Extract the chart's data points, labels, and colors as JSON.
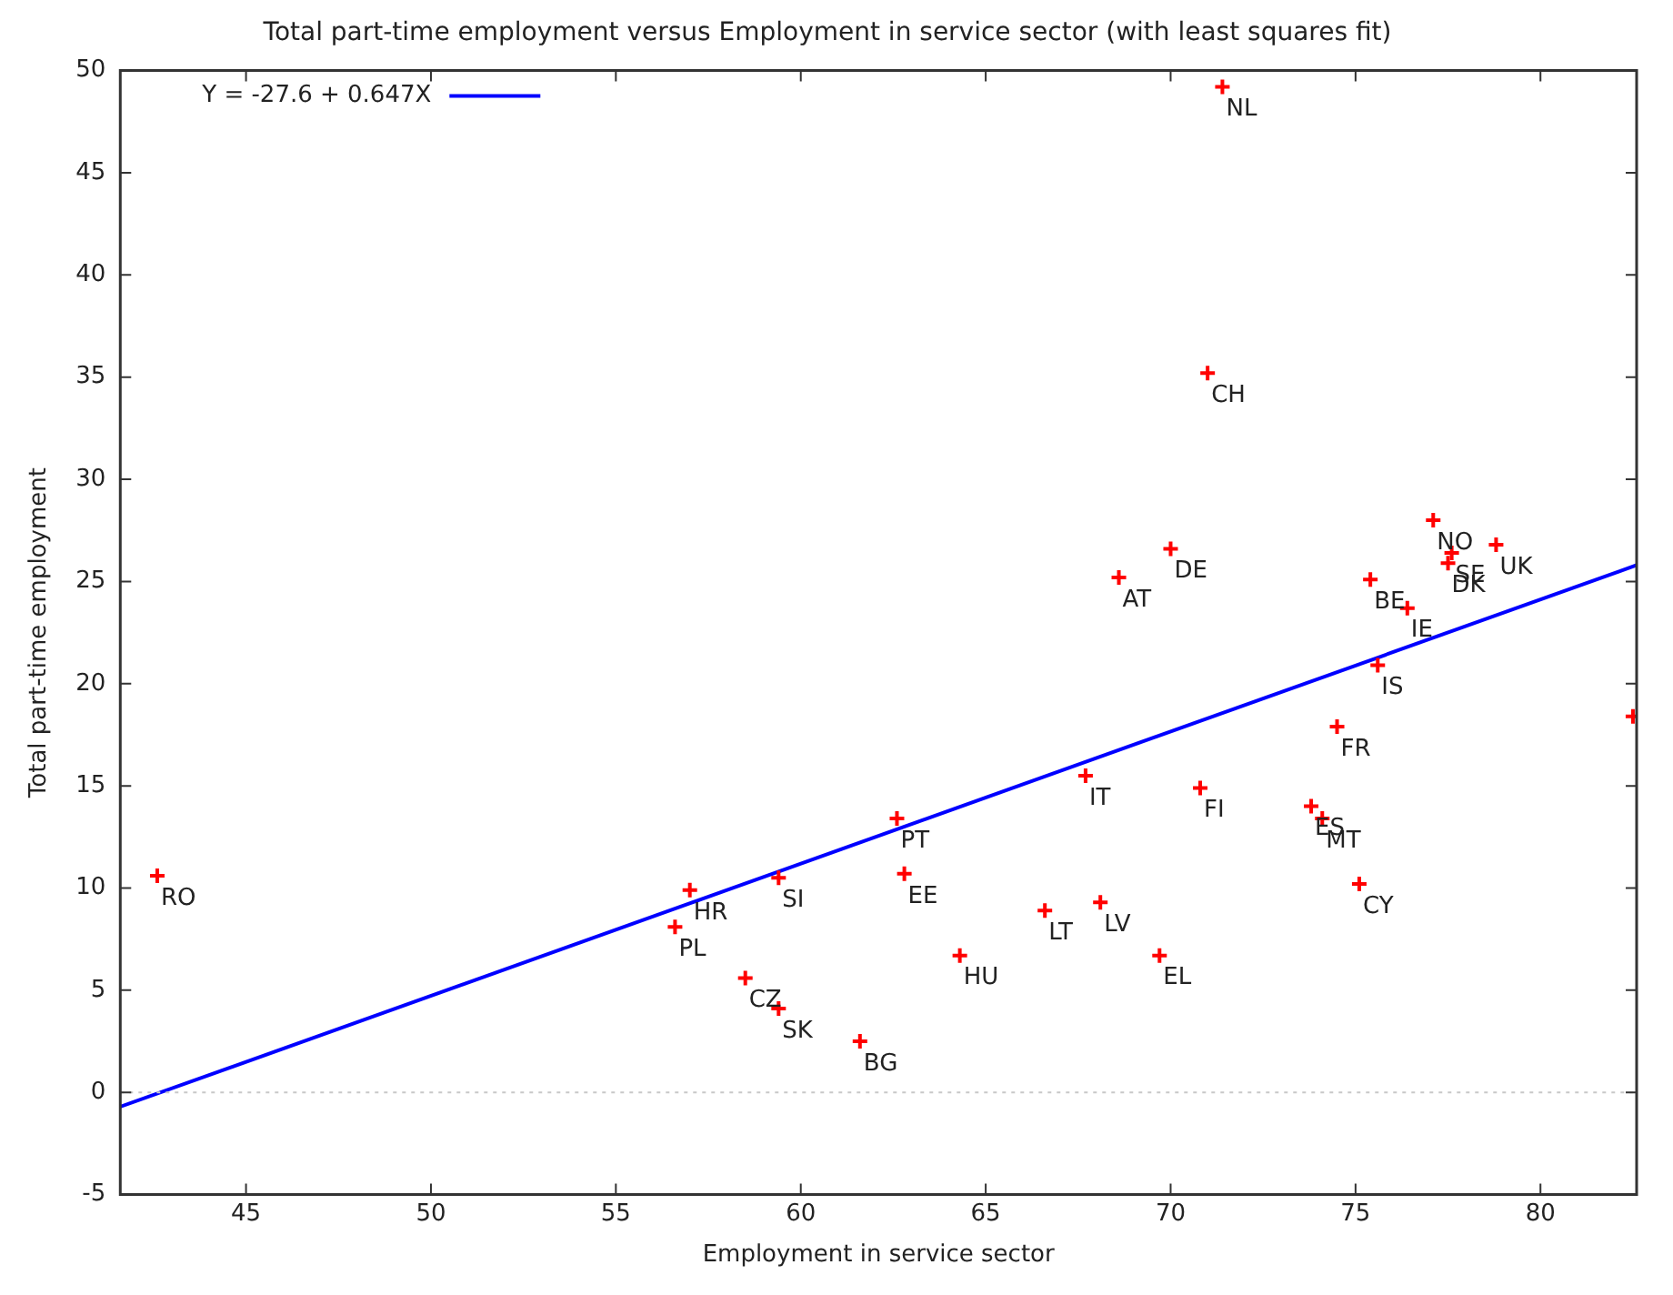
{
  "chart_data": {
    "type": "scatter",
    "title": "Total part-time employment versus Employment in service sector (with least squares fit)",
    "xlabel": "Employment in service sector",
    "ylabel": "Total part-time employment",
    "xlim": [
      41.6,
      82.6
    ],
    "xticks": [
      45,
      50,
      55,
      60,
      65,
      70,
      75,
      80
    ],
    "ylim": [
      -5,
      50
    ],
    "yticks": [
      -5,
      0,
      5,
      10,
      15,
      20,
      25,
      30,
      35,
      40,
      45,
      50
    ],
    "grid": false,
    "legend": "top left",
    "marker": "cross",
    "ref_lines": [
      {
        "axis": "y",
        "value": 0,
        "color": "#c8c8c8",
        "line_style": "dotted"
      }
    ],
    "series": [
      {
        "type": "scatter",
        "color": "#ff0000",
        "x": [
          42.6,
          57.0,
          56.6,
          59.4,
          58.5,
          59.4,
          62.6,
          62.8,
          61.6,
          64.3,
          66.6,
          68.1,
          69.7,
          67.7,
          70.8,
          73.8,
          74.1,
          75.1,
          74.5,
          75.6,
          75.4,
          76.4,
          77.1,
          77.5,
          77.6,
          78.8,
          68.6,
          70.0,
          71.0,
          71.4,
          82.5
        ],
        "values": [
          10.6,
          9.9,
          8.1,
          10.5,
          5.6,
          4.1,
          13.4,
          10.7,
          2.5,
          6.7,
          8.9,
          9.3,
          6.7,
          15.5,
          14.9,
          14.0,
          13.4,
          10.2,
          17.9,
          20.9,
          25.1,
          23.7,
          28.0,
          25.9,
          26.4,
          26.8,
          25.2,
          26.6,
          35.2,
          49.2,
          18.4
        ]
      },
      {
        "type": "line",
        "name": "Y = -27.6 + 0.647X",
        "color": "#0000ff",
        "line_style": "solid",
        "marker": "none",
        "x": [
          41.6,
          82.6
        ],
        "values": [
          -0.7,
          25.8
        ]
      }
    ],
    "annotations": [
      {
        "text": "RO",
        "x": 42.6,
        "y": 10.6
      },
      {
        "text": "HR",
        "x": 57.0,
        "y": 9.9
      },
      {
        "text": "PL",
        "x": 56.6,
        "y": 8.1
      },
      {
        "text": "SI",
        "x": 59.4,
        "y": 10.5
      },
      {
        "text": "CZ",
        "x": 58.5,
        "y": 5.6
      },
      {
        "text": "SK",
        "x": 59.4,
        "y": 4.1
      },
      {
        "text": "PT",
        "x": 62.6,
        "y": 13.4
      },
      {
        "text": "EE",
        "x": 62.8,
        "y": 10.7
      },
      {
        "text": "BG",
        "x": 61.6,
        "y": 2.5
      },
      {
        "text": "HU",
        "x": 64.3,
        "y": 6.7
      },
      {
        "text": "LT",
        "x": 66.6,
        "y": 8.9
      },
      {
        "text": "LV",
        "x": 68.1,
        "y": 9.3
      },
      {
        "text": "EL",
        "x": 69.7,
        "y": 6.7
      },
      {
        "text": "IT",
        "x": 67.7,
        "y": 15.5
      },
      {
        "text": "FI",
        "x": 70.8,
        "y": 14.9
      },
      {
        "text": "ES",
        "x": 73.8,
        "y": 14.0
      },
      {
        "text": "MT",
        "x": 74.1,
        "y": 13.4
      },
      {
        "text": "CY",
        "x": 75.1,
        "y": 10.2
      },
      {
        "text": "FR",
        "x": 74.5,
        "y": 17.9
      },
      {
        "text": "IS",
        "x": 75.6,
        "y": 20.9
      },
      {
        "text": "BE",
        "x": 75.4,
        "y": 25.1
      },
      {
        "text": "IE",
        "x": 76.4,
        "y": 23.7
      },
      {
        "text": "NO",
        "x": 77.1,
        "y": 28.0
      },
      {
        "text": "DK",
        "x": 77.5,
        "y": 25.9
      },
      {
        "text": "SE",
        "x": 77.6,
        "y": 26.4
      },
      {
        "text": "UK",
        "x": 78.8,
        "y": 26.8
      },
      {
        "text": "AT",
        "x": 68.6,
        "y": 25.2
      },
      {
        "text": "DE",
        "x": 70.0,
        "y": 26.6
      },
      {
        "text": "CH",
        "x": 71.0,
        "y": 35.2
      },
      {
        "text": "NL",
        "x": 71.4,
        "y": 49.2
      }
    ]
  }
}
